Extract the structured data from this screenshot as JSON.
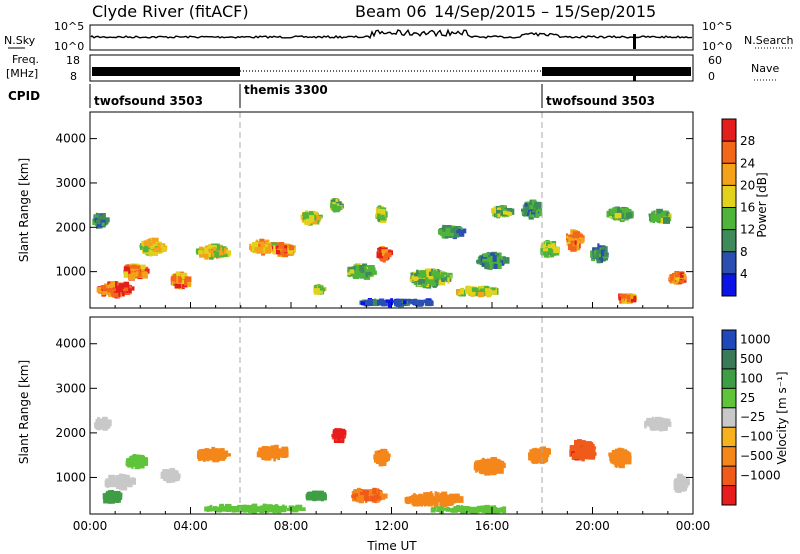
{
  "header": {
    "station": "Clyde River (fitACF)",
    "beam": "Beam 06",
    "date_range": "14/Sep/2015 – 15/Sep/2015"
  },
  "chart_data": [
    {
      "type": "line",
      "panel": "noise",
      "left_label": "N.Sky",
      "right_label": "N.Search",
      "left_ticks": [
        "10^5",
        "10^0"
      ],
      "right_ticks": [
        "10^5",
        "10^0"
      ],
      "note": "noise level trace with spike near 21:40 UT"
    },
    {
      "type": "line",
      "panel": "freq-nave",
      "left_label_1": "Freq.",
      "left_label_2": "[MHz]",
      "right_label": "Nave",
      "left_ticks": [
        "18",
        "8"
      ],
      "right_ticks": [
        "60",
        "0"
      ],
      "left_range": [
        8,
        18
      ],
      "right_range": [
        0,
        60
      ]
    },
    {
      "type": "table",
      "panel": "cpid",
      "label": "CPID",
      "segments": [
        {
          "start_hour": 0,
          "name": "twofsound 3503"
        },
        {
          "start_hour": 6,
          "name": "themis 3300"
        },
        {
          "start_hour": 18,
          "name": "twofsound 3503"
        }
      ]
    },
    {
      "type": "heatmap",
      "panel": "power",
      "ylabel": "Slant Range [km]",
      "ylim": [
        180,
        4600
      ],
      "yticks": [
        1000,
        2000,
        3000,
        4000
      ],
      "xlim_hours": [
        0,
        24
      ],
      "colorbar_label": "Power [dB]",
      "colorbar_ticks": [
        "4",
        "8",
        "12",
        "16",
        "20",
        "24",
        "28"
      ],
      "colorbar_colors": [
        "#0a14e6",
        "#2a4fb0",
        "#3e8a5a",
        "#4eb53a",
        "#e3d21c",
        "#f4a21a",
        "#f3671a",
        "#e41d1d"
      ],
      "blobs": [
        {
          "t": 0.9,
          "r": 600,
          "dt": 1.3,
          "dr": 280,
          "v": 27
        },
        {
          "t": 1.7,
          "r": 1000,
          "dt": 0.9,
          "dr": 280,
          "v": 24
        },
        {
          "t": 2.4,
          "r": 1550,
          "dt": 0.9,
          "dr": 300,
          "v": 18
        },
        {
          "t": 0.3,
          "r": 2150,
          "dt": 0.5,
          "dr": 260,
          "v": 11
        },
        {
          "t": 3.5,
          "r": 800,
          "dt": 0.6,
          "dr": 300,
          "v": 23
        },
        {
          "t": 4.8,
          "r": 1450,
          "dt": 1.2,
          "dr": 260,
          "v": 19
        },
        {
          "t": 6.8,
          "r": 1550,
          "dt": 1.0,
          "dr": 240,
          "v": 21
        },
        {
          "t": 7.6,
          "r": 1500,
          "dt": 0.8,
          "dr": 230,
          "v": 24
        },
        {
          "t": 8.7,
          "r": 2200,
          "dt": 0.7,
          "dr": 230,
          "v": 17
        },
        {
          "t": 9.7,
          "r": 2500,
          "dt": 0.3,
          "dr": 260,
          "v": 14
        },
        {
          "t": 9.0,
          "r": 600,
          "dt": 0.3,
          "dr": 140,
          "v": 18
        },
        {
          "t": 10.7,
          "r": 1000,
          "dt": 1.1,
          "dr": 250,
          "v": 13
        },
        {
          "t": 11.6,
          "r": 1400,
          "dt": 0.4,
          "dr": 260,
          "v": 26
        },
        {
          "t": 11.5,
          "r": 2300,
          "dt": 0.3,
          "dr": 300,
          "v": 15
        },
        {
          "t": 13.5,
          "r": 850,
          "dt": 1.6,
          "dr": 350,
          "v": 14
        },
        {
          "t": 15.3,
          "r": 550,
          "dt": 1.6,
          "dr": 150,
          "v": 17
        },
        {
          "t": 15.9,
          "r": 1250,
          "dt": 1.1,
          "dr": 300,
          "v": 11
        },
        {
          "t": 16.3,
          "r": 2350,
          "dt": 0.7,
          "dr": 180,
          "v": 15
        },
        {
          "t": 14.3,
          "r": 1900,
          "dt": 0.9,
          "dr": 220,
          "v": 10
        },
        {
          "t": 17.5,
          "r": 2400,
          "dt": 0.7,
          "dr": 350,
          "v": 10
        },
        {
          "t": 19.2,
          "r": 1700,
          "dt": 0.6,
          "dr": 400,
          "v": 24
        },
        {
          "t": 18.2,
          "r": 1500,
          "dt": 0.6,
          "dr": 300,
          "v": 15
        },
        {
          "t": 20.2,
          "r": 1400,
          "dt": 0.6,
          "dr": 330,
          "v": 10
        },
        {
          "t": 21.0,
          "r": 2300,
          "dt": 0.9,
          "dr": 250,
          "v": 13
        },
        {
          "t": 22.6,
          "r": 2250,
          "dt": 0.8,
          "dr": 230,
          "v": 13
        },
        {
          "t": 23.3,
          "r": 850,
          "dt": 0.6,
          "dr": 200,
          "v": 25
        },
        {
          "t": 21.3,
          "r": 400,
          "dt": 0.7,
          "dr": 130,
          "v": 24
        },
        {
          "t": 12.2,
          "r": 300,
          "dt": 3.0,
          "dr": 90,
          "v": 6
        }
      ]
    },
    {
      "type": "heatmap",
      "panel": "velocity",
      "ylabel": "Slant Range [km]",
      "ylim": [
        180,
        4600
      ],
      "yticks": [
        1000,
        2000,
        3000,
        4000
      ],
      "xlim_hours": [
        0,
        24
      ],
      "xticks": [
        "00:00",
        "04:00",
        "08:00",
        "12:00",
        "16:00",
        "20:00",
        "00:00"
      ],
      "xlabel": "Time UT",
      "colorbar_label": "Velocity [m s⁻¹]",
      "colorbar_ticks": [
        "1000",
        "500",
        "100",
        "25",
        "−25",
        "−100",
        "−500",
        "−1000"
      ],
      "colorbar_colors": [
        "#2048b8",
        "#3a7a58",
        "#3f9e45",
        "#5fc43a",
        "#c8c8c8",
        "#f5b21e",
        "#f4861a",
        "#f05a1a",
        "#e81c1c"
      ],
      "blobs": [
        {
          "t": 1.1,
          "r": 900,
          "dt": 1.2,
          "dr": 250,
          "v": 0
        },
        {
          "t": 3.1,
          "r": 1050,
          "dt": 0.6,
          "dr": 220,
          "v": 0
        },
        {
          "t": 0.4,
          "r": 2200,
          "dt": 0.5,
          "dr": 180,
          "v": 0
        },
        {
          "t": 1.8,
          "r": 1350,
          "dt": 0.8,
          "dr": 220,
          "v": 40
        },
        {
          "t": 4.8,
          "r": 1500,
          "dt": 1.2,
          "dr": 230,
          "v": -200
        },
        {
          "t": 7.2,
          "r": 1550,
          "dt": 1.2,
          "dr": 240,
          "v": -250
        },
        {
          "t": 9.8,
          "r": 1950,
          "dt": 0.4,
          "dr": 250,
          "v": -800
        },
        {
          "t": 11.5,
          "r": 1450,
          "dt": 0.5,
          "dr": 280,
          "v": -300
        },
        {
          "t": 13.6,
          "r": 500,
          "dt": 2.2,
          "dr": 260,
          "v": -220
        },
        {
          "t": 11.0,
          "r": 600,
          "dt": 1.3,
          "dr": 250,
          "v": -350
        },
        {
          "t": 15.8,
          "r": 1250,
          "dt": 1.1,
          "dr": 300,
          "v": -250
        },
        {
          "t": 17.8,
          "r": 1500,
          "dt": 0.8,
          "dr": 280,
          "v": -220
        },
        {
          "t": 19.5,
          "r": 1600,
          "dt": 0.9,
          "dr": 400,
          "v": -600
        },
        {
          "t": 21.0,
          "r": 1450,
          "dt": 0.8,
          "dr": 350,
          "v": -250
        },
        {
          "t": 22.5,
          "r": 2200,
          "dt": 1.0,
          "dr": 220,
          "v": 0
        },
        {
          "t": 23.4,
          "r": 850,
          "dt": 0.5,
          "dr": 330,
          "v": 0
        },
        {
          "t": 8.9,
          "r": 580,
          "dt": 0.7,
          "dr": 150,
          "v": 120
        },
        {
          "t": 6.5,
          "r": 300,
          "dt": 4.0,
          "dr": 90,
          "v": 35
        },
        {
          "t": 15.0,
          "r": 280,
          "dt": 3.0,
          "dr": 70,
          "v": 40
        },
        {
          "t": 0.8,
          "r": 550,
          "dt": 0.7,
          "dr": 200,
          "v": 200
        }
      ]
    }
  ]
}
